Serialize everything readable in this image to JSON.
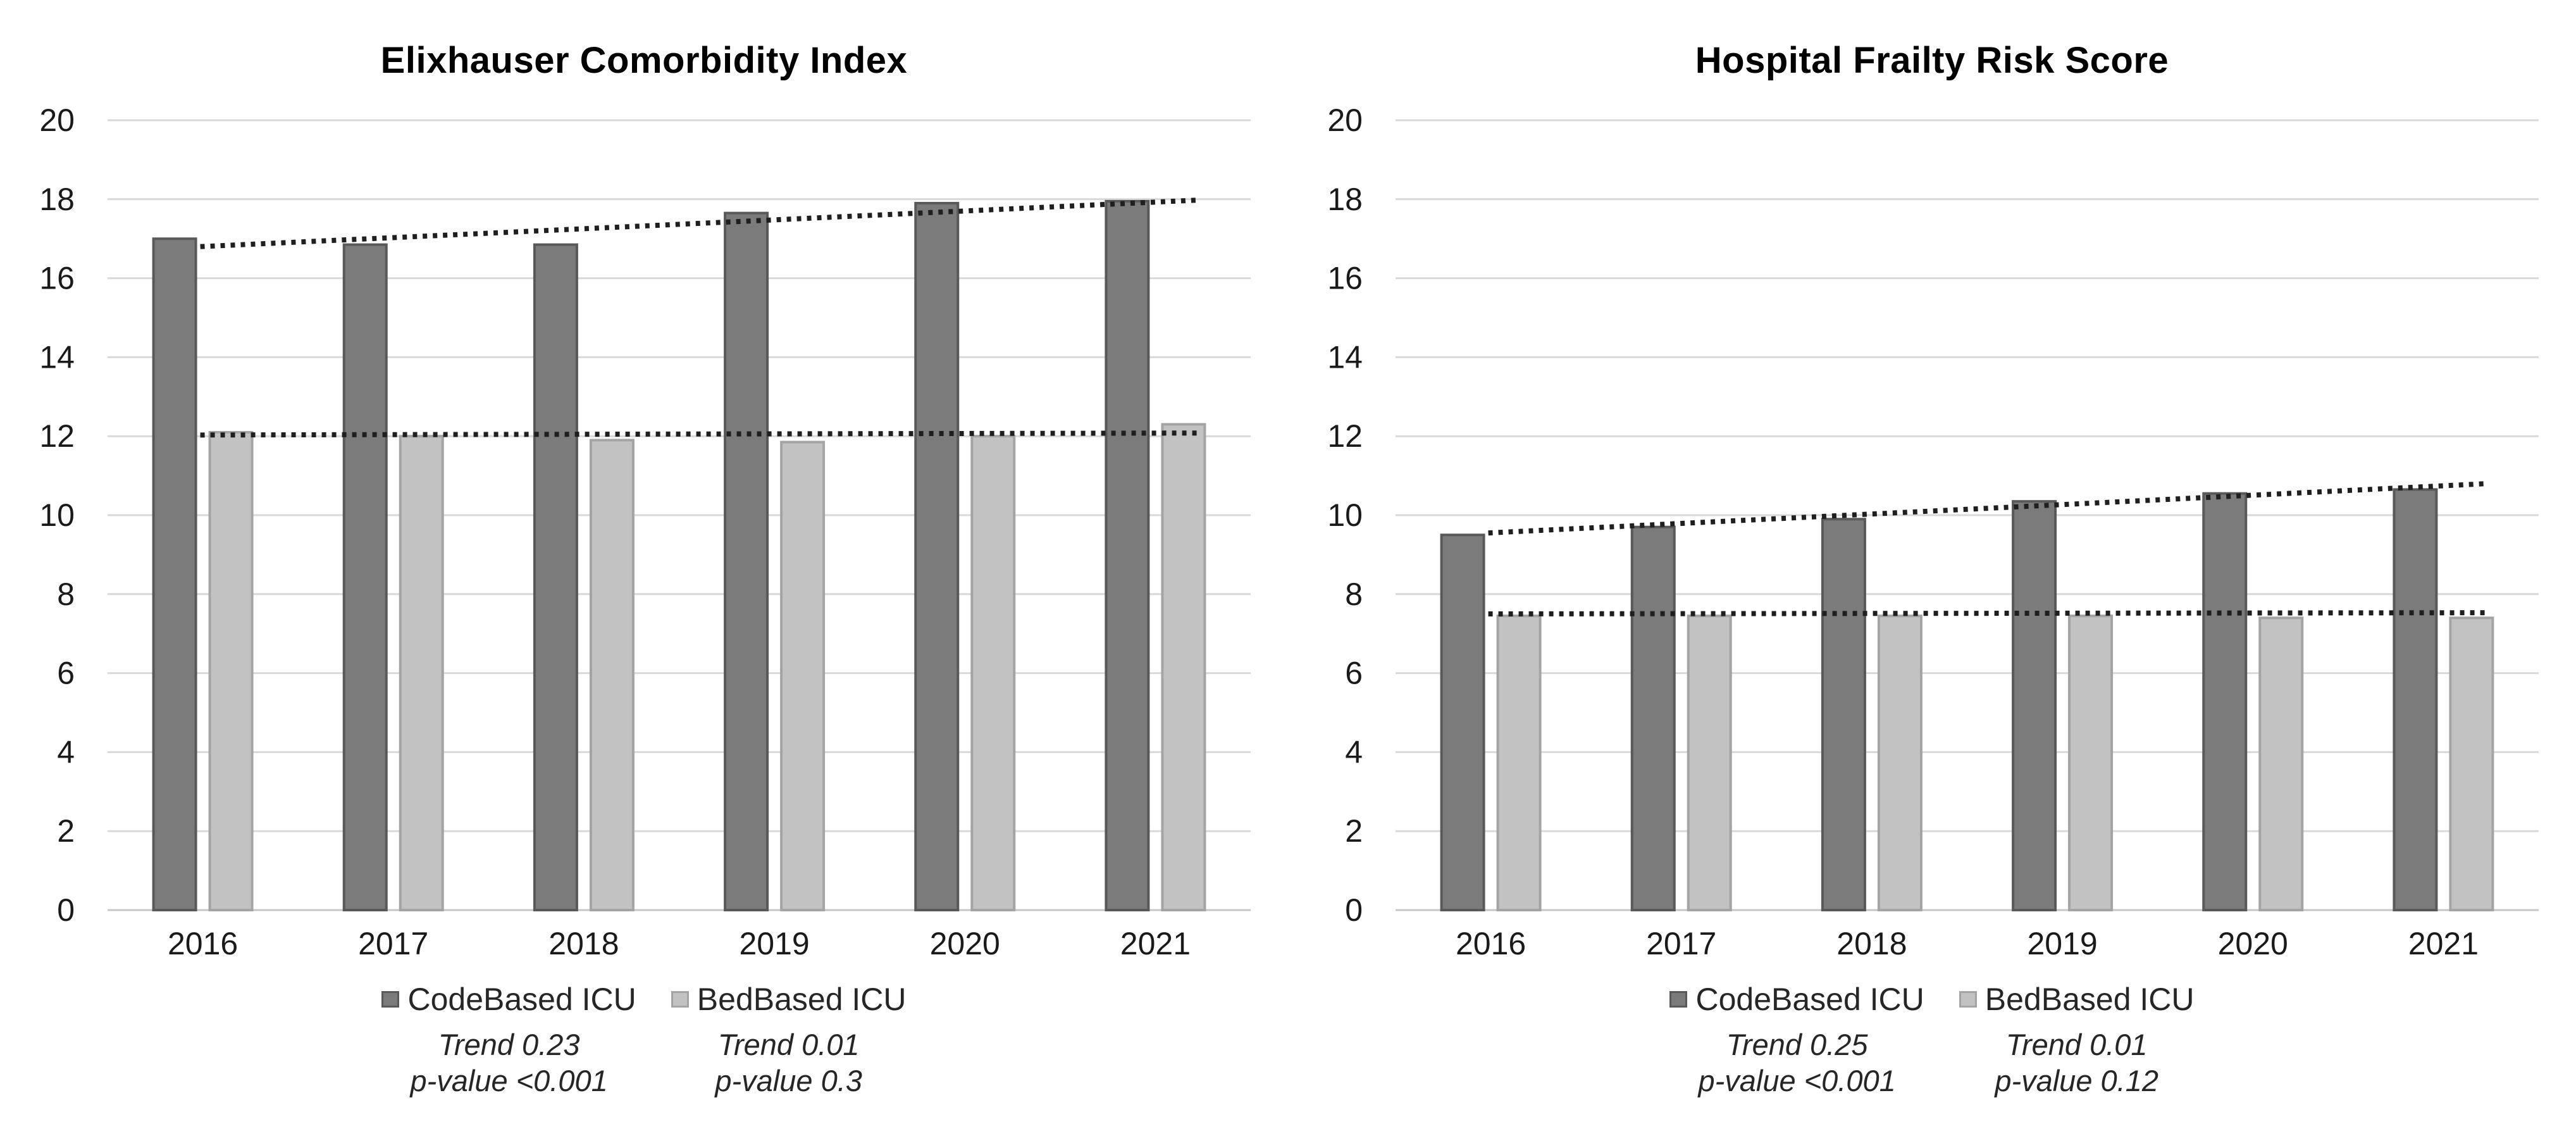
{
  "style": {
    "title_color": "#000000",
    "text_color": "#1a1a1a",
    "legend_text_color": "#262626",
    "grid_color": "#d9d9d9",
    "axis_color": "#c6c6c6",
    "trend_color": "#1f1f1f"
  },
  "chart_data": [
    {
      "type": "bar",
      "title": "Elixhauser Comorbidity Index",
      "categories": [
        "2016",
        "2017",
        "2018",
        "2019",
        "2020",
        "2021"
      ],
      "ylim": [
        0,
        20
      ],
      "yticks": [
        0,
        2,
        4,
        6,
        8,
        10,
        12,
        14,
        16,
        18,
        20
      ],
      "grid": true,
      "legend_position": "bottom",
      "series": [
        {
          "name": "CodeBased ICU",
          "values": [
            17.0,
            16.85,
            16.85,
            17.65,
            17.9,
            17.95
          ],
          "color": "#7b7b7b",
          "border_color": "#595959",
          "trend_line": {
            "start": 16.8,
            "end": 17.98
          },
          "trend_label": "Trend 0.23",
          "p_value_label": "p-value <0.001"
        },
        {
          "name": "BedBased ICU",
          "values": [
            12.1,
            12.0,
            11.9,
            11.85,
            12.0,
            12.3
          ],
          "color": "#c2c2c2",
          "border_color": "#a4a4a4",
          "trend_line": {
            "start": 12.03,
            "end": 12.08
          },
          "trend_label": "Trend 0.01",
          "p_value_label": "p-value 0.3"
        }
      ]
    },
    {
      "type": "bar",
      "title": "Hospital Frailty Risk Score",
      "categories": [
        "2016",
        "2017",
        "2018",
        "2019",
        "2020",
        "2021"
      ],
      "ylim": [
        0,
        20
      ],
      "yticks": [
        0,
        2,
        4,
        6,
        8,
        10,
        12,
        14,
        16,
        18,
        20
      ],
      "grid": true,
      "legend_position": "bottom",
      "series": [
        {
          "name": "CodeBased ICU",
          "values": [
            9.5,
            9.7,
            9.9,
            10.35,
            10.55,
            10.65
          ],
          "color": "#7b7b7b",
          "border_color": "#595959",
          "trend_line": {
            "start": 9.55,
            "end": 10.8
          },
          "trend_label": "Trend 0.25",
          "p_value_label": "p-value <0.001"
        },
        {
          "name": "BedBased ICU",
          "values": [
            7.45,
            7.45,
            7.45,
            7.45,
            7.4,
            7.4
          ],
          "color": "#c2c2c2",
          "border_color": "#a4a4a4",
          "trend_line": {
            "start": 7.5,
            "end": 7.53
          },
          "trend_label": "Trend 0.01",
          "p_value_label": "p-value 0.12"
        }
      ]
    }
  ]
}
